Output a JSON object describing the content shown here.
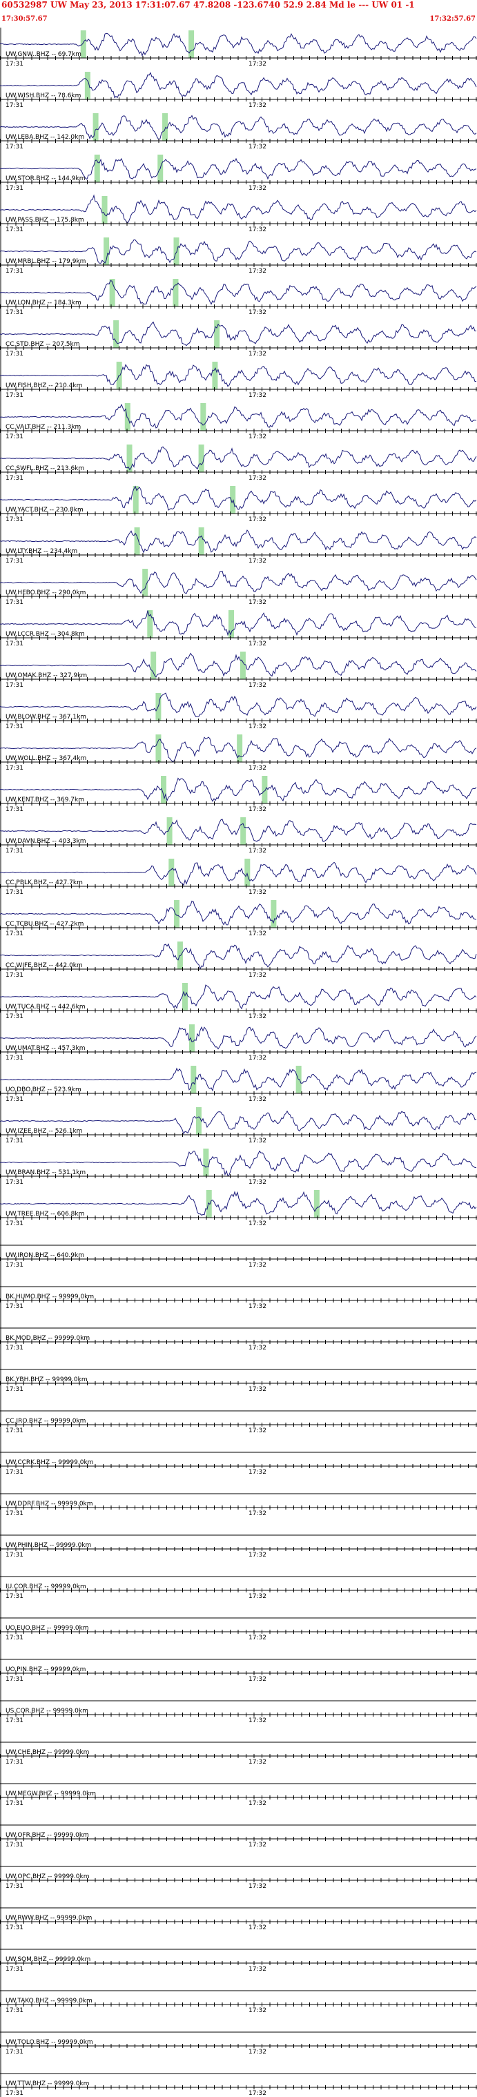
{
  "header": {
    "event": "60532987 UW May 23, 2013 17:31:07.67   47.8208 -123.6740 52.9 2.84 Md le --- UW 01  -1",
    "start_time": "17:30:57.67",
    "end_time": "17:32:57.67"
  },
  "chart_data": {
    "type": "line",
    "title": "60532987 UW May 23, 2013 17:31:07.67   47.8208 -123.6740 52.9 2.84 Md le --- UW 01  -1",
    "time_range": [
      "17:30:57.67",
      "17:32:57.67"
    ],
    "tick_labels": [
      "17:31",
      "17:32"
    ],
    "colors": {
      "trace": "#1a1a7a",
      "pick": "#a8e0a8",
      "header": "#dd1111",
      "axis": "#000000"
    },
    "traces": [
      {
        "label": "UW.GNW..BHZ -- 69.7km",
        "active": true
      },
      {
        "label": "UW.WISH.BHZ -- 78.6km",
        "active": true
      },
      {
        "label": "UW.LEBA.BHZ -- 142.0km",
        "active": true
      },
      {
        "label": "UW.STOR.BHZ -- 144.9km",
        "active": true
      },
      {
        "label": "UW.PASS.BHZ -- 175.8km",
        "active": true
      },
      {
        "label": "UW.MRBL.BHZ -- 179.9km",
        "active": true
      },
      {
        "label": "UW.LON.BHZ -- 184.3km",
        "active": true
      },
      {
        "label": "CC.STD.BHZ -- 207.5km",
        "active": true
      },
      {
        "label": "UW.FISH.BHZ -- 210.4km",
        "active": true
      },
      {
        "label": "CC.VALT.BHZ -- 211.3km",
        "active": true
      },
      {
        "label": "CC.SWFL.BHZ -- 213.6km",
        "active": true
      },
      {
        "label": "UW.YACT.BHZ -- 230.8km",
        "active": true
      },
      {
        "label": "UW.LTY.BHZ -- 234.4km",
        "active": true
      },
      {
        "label": "UW.HEBO.BHZ -- 290.0km",
        "active": true
      },
      {
        "label": "UW.LCCR.BHZ -- 304.8km",
        "active": true
      },
      {
        "label": "UW.OMAK.BHZ -- 327.9km",
        "active": true
      },
      {
        "label": "UW.BLOW.BHZ -- 367.1km",
        "active": true
      },
      {
        "label": "UW.WOLL.BHZ -- 367.4km",
        "active": true
      },
      {
        "label": "UW.KENT.BHZ -- 369.7km",
        "active": true
      },
      {
        "label": "UW.DAVN.BHZ -- 403.3km",
        "active": true
      },
      {
        "label": "CC.PBLK.BHZ -- 427.7km",
        "active": true
      },
      {
        "label": "CC.TCBU.BHZ -- 427.2km",
        "active": true
      },
      {
        "label": "CC.WIFE.BHZ -- 442.0km",
        "active": true
      },
      {
        "label": "UW.TUCA.BHZ -- 442.6km",
        "active": true
      },
      {
        "label": "UW.UMAT.BHZ -- 457.3km",
        "active": true
      },
      {
        "label": "UO.DBO.BHZ -- 523.9km",
        "active": true
      },
      {
        "label": "UW.IZEE.BHZ -- 526.1km",
        "active": true
      },
      {
        "label": "UW.BRAN.BHZ -- 531.1km",
        "active": true
      },
      {
        "label": "UW.TREE.BHZ -- 606.8km",
        "active": true
      },
      {
        "label": "UW.IRON.BHZ -- 640.9km",
        "active": false
      },
      {
        "label": "BK.HUMO.BHZ -- 99999.0km",
        "active": false
      },
      {
        "label": "BK.MOD.BHZ -- 99999.0km",
        "active": false
      },
      {
        "label": "BK.YBH.BHZ -- 99999.0km",
        "active": false
      },
      {
        "label": "CC.JRO.BHZ -- 99999.0km",
        "active": false
      },
      {
        "label": "UW.CCRK.BHZ -- 99999.0km",
        "active": false
      },
      {
        "label": "UW.DDRF.BHZ -- 99999.0km",
        "active": false
      },
      {
        "label": "UW.PHIN.BHZ -- 99999.0km",
        "active": false
      },
      {
        "label": "IU.COR.BHZ -- 99999.0km",
        "active": false
      },
      {
        "label": "UO.EUO.BHZ -- 99999.0km",
        "active": false
      },
      {
        "label": "UO.PIN.BHZ -- 99999.0km",
        "active": false
      },
      {
        "label": "US.COR.BHZ -- 99999.0km",
        "active": false
      },
      {
        "label": "UW.CHE.BHZ -- 99999.0km",
        "active": false
      },
      {
        "label": "UW.MEGW.BHZ -- 99999.0km",
        "active": false
      },
      {
        "label": "UW.OFR.BHZ -- 99999.0km",
        "active": false
      },
      {
        "label": "UW.OPC.BHZ -- 99999.0km",
        "active": false
      },
      {
        "label": "UW.RWW.BHZ -- 99999.0km",
        "active": false
      },
      {
        "label": "UW.SQM.BHZ -- 99999.0km",
        "active": false
      },
      {
        "label": "UW.TAKO.BHZ -- 99999.0km",
        "active": false
      },
      {
        "label": "UW.TOLO.BHZ -- 99999.0km",
        "active": false
      },
      {
        "label": "UW.TTW.BHZ -- 99999.0km",
        "active": false
      }
    ]
  }
}
